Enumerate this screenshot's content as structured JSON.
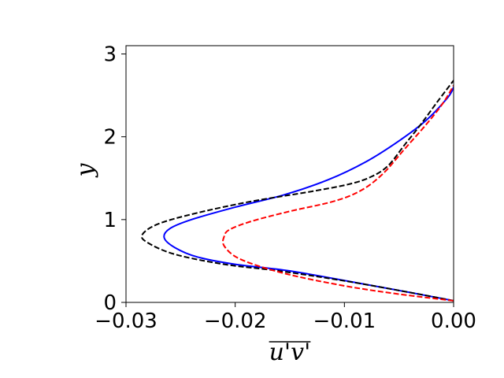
{
  "chart_data": {
    "type": "line",
    "title": "",
    "xlabel": "u'v'",
    "xlabel_overline": true,
    "ylabel": "y",
    "xlim": [
      -0.03,
      0.0
    ],
    "ylim": [
      0,
      3.1
    ],
    "xticks": [
      -0.03,
      -0.02,
      -0.01,
      0.0
    ],
    "xtick_labels": [
      "−0.03",
      "−0.02",
      "−0.01",
      "0.00"
    ],
    "yticks": [
      0,
      1,
      2,
      3
    ],
    "ytick_labels": [
      "0",
      "1",
      "2",
      "3"
    ],
    "grid": false,
    "legend": "none",
    "series": [
      {
        "color": "#0000ff",
        "dash": "solid",
        "points": [
          [
            0.0,
            0.02
          ],
          [
            -0.004,
            0.12
          ],
          [
            -0.009,
            0.24
          ],
          [
            -0.015,
            0.38
          ],
          [
            -0.02,
            0.46
          ],
          [
            -0.0235,
            0.55
          ],
          [
            -0.0255,
            0.66
          ],
          [
            -0.0265,
            0.78
          ],
          [
            -0.026,
            0.89
          ],
          [
            -0.024,
            1.0
          ],
          [
            -0.02,
            1.15
          ],
          [
            -0.0155,
            1.3
          ],
          [
            -0.0115,
            1.48
          ],
          [
            -0.008,
            1.7
          ],
          [
            -0.005,
            1.95
          ],
          [
            -0.0025,
            2.2
          ],
          [
            -0.0005,
            2.48
          ],
          [
            0.0,
            2.6
          ]
        ]
      },
      {
        "color": "#000000",
        "dash": "dashed",
        "points": [
          [
            0.0,
            0.02
          ],
          [
            -0.004,
            0.12
          ],
          [
            -0.01,
            0.26
          ],
          [
            -0.016,
            0.38
          ],
          [
            -0.021,
            0.46
          ],
          [
            -0.0255,
            0.58
          ],
          [
            -0.028,
            0.72
          ],
          [
            -0.0285,
            0.82
          ],
          [
            -0.027,
            0.95
          ],
          [
            -0.0235,
            1.08
          ],
          [
            -0.0185,
            1.22
          ],
          [
            -0.013,
            1.34
          ],
          [
            -0.0095,
            1.43
          ],
          [
            -0.0075,
            1.52
          ],
          [
            -0.006,
            1.65
          ],
          [
            -0.0045,
            1.9
          ],
          [
            -0.003,
            2.15
          ],
          [
            -0.0015,
            2.42
          ],
          [
            0.0,
            2.68
          ]
        ]
      },
      {
        "color": "#ff0000",
        "dash": "dashed",
        "points": [
          [
            0.0,
            0.02
          ],
          [
            -0.005,
            0.1
          ],
          [
            -0.01,
            0.2
          ],
          [
            -0.0155,
            0.35
          ],
          [
            -0.0195,
            0.52
          ],
          [
            -0.021,
            0.68
          ],
          [
            -0.021,
            0.8
          ],
          [
            -0.0205,
            0.88
          ],
          [
            -0.0185,
            0.98
          ],
          [
            -0.015,
            1.1
          ],
          [
            -0.011,
            1.22
          ],
          [
            -0.0085,
            1.35
          ],
          [
            -0.0065,
            1.55
          ],
          [
            -0.0045,
            1.85
          ],
          [
            -0.0025,
            2.15
          ],
          [
            -0.001,
            2.4
          ],
          [
            0.0,
            2.62
          ]
        ]
      }
    ]
  }
}
